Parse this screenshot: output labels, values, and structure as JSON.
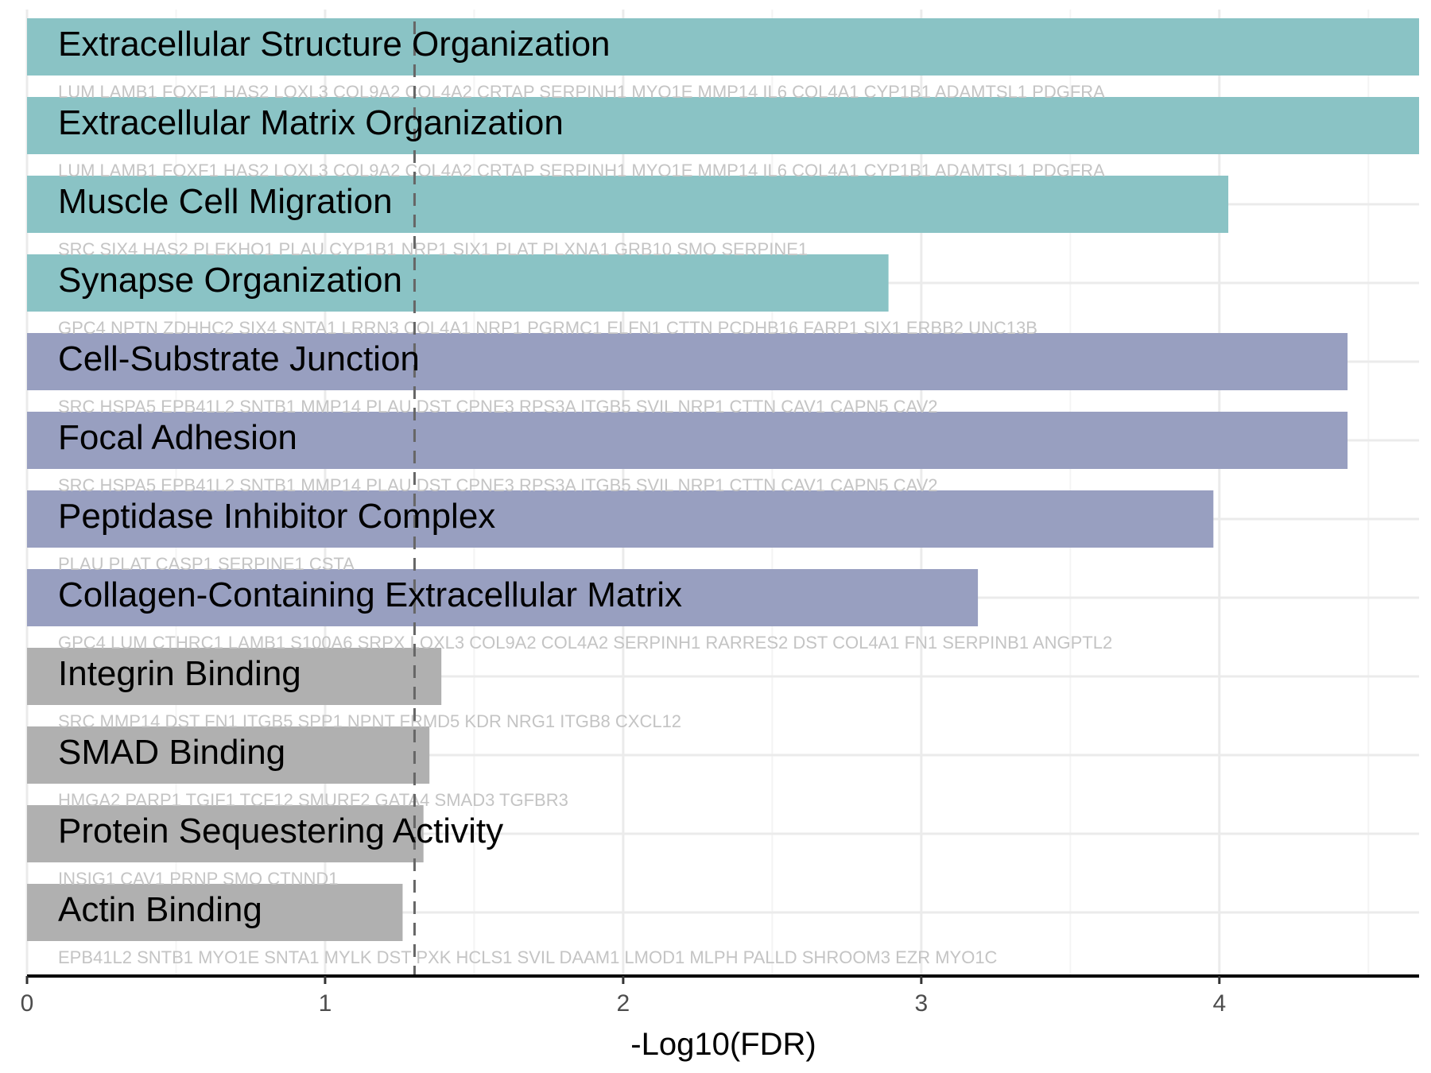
{
  "chart_data": {
    "type": "bar",
    "orientation": "horizontal",
    "xlabel": "-Log10(FDR)",
    "xlim": [
      0,
      4.67
    ],
    "xticks": [
      0,
      1,
      2,
      3,
      4
    ],
    "threshold": 1.3,
    "grid": true,
    "colors": {
      "teal": "#8ac3c5",
      "lavender": "#989fc0",
      "gray": "#b0b0b0",
      "threshold_line": "#666666"
    },
    "bars": [
      {
        "term": "Extracellular Structure Organization",
        "value": 4.67,
        "color": "teal",
        "genes": "LUM LAMB1 FOXF1 HAS2 LOXL3 COL9A2 COL4A2 CRTAP SERPINH1 MYO1E MMP14 IL6 COL4A1 CYP1B1 ADAMTSL1 PDGFRA"
      },
      {
        "term": "Extracellular Matrix Organization",
        "value": 4.67,
        "color": "teal",
        "genes": "LUM LAMB1 FOXF1 HAS2 LOXL3 COL9A2 COL4A2 CRTAP SERPINH1 MYO1E MMP14 IL6 COL4A1 CYP1B1 ADAMTSL1 PDGFRA"
      },
      {
        "term": "Muscle Cell Migration",
        "value": 4.03,
        "color": "teal",
        "genes": "SRC SIX4 HAS2 PLEKHO1 PLAU CYP1B1 NRP1 SIX1 PLAT PLXNA1 GRB10 SMO SERPINE1"
      },
      {
        "term": "Synapse Organization",
        "value": 2.89,
        "color": "teal",
        "genes": "GPC4 NPTN ZDHHC2 SIX4 SNTA1 LRRN3 COL4A1 NRP1 PGRMC1 ELFN1 CTTN PCDHB16 FARP1 SIX1 ERBB2 UNC13B"
      },
      {
        "term": "Cell-Substrate Junction",
        "value": 4.43,
        "color": "lavender",
        "genes": "SRC HSPA5 EPB41L2 SNTB1 MMP14 PLAU DST CPNE3 RPS3A ITGB5 SVIL NRP1 CTTN CAV1 CAPN5 CAV2"
      },
      {
        "term": "Focal Adhesion",
        "value": 4.43,
        "color": "lavender",
        "genes": "SRC HSPA5 EPB41L2 SNTB1 MMP14 PLAU DST CPNE3 RPS3A ITGB5 SVIL NRP1 CTTN CAV1 CAPN5 CAV2"
      },
      {
        "term": "Peptidase Inhibitor Complex",
        "value": 3.98,
        "color": "lavender",
        "genes": "PLAU PLAT CASP1 SERPINE1 CSTA"
      },
      {
        "term": "Collagen-Containing Extracellular Matrix",
        "value": 3.19,
        "color": "lavender",
        "genes": "GPC4 LUM CTHRC1 LAMB1 S100A6 SRPX LOXL3 COL9A2 COL4A2 SERPINH1 RARRES2 DST COL4A1 FN1 SERPINB1 ANGPTL2"
      },
      {
        "term": "Integrin Binding",
        "value": 1.39,
        "color": "gray",
        "genes": "SRC MMP14 DST FN1 ITGB5 SPP1 NPNT FRMD5 KDR NRG1 ITGB8 CXCL12"
      },
      {
        "term": "SMAD Binding",
        "value": 1.35,
        "color": "gray",
        "genes": "HMGA2 PARP1 TGIF1 TCF12 SMURF2 GATA4 SMAD3 TGFBR3"
      },
      {
        "term": "Protein Sequestering Activity",
        "value": 1.33,
        "color": "gray",
        "genes": "INSIG1 CAV1 PRNP SMO CTNND1"
      },
      {
        "term": "Actin Binding",
        "value": 1.26,
        "color": "gray",
        "genes": "EPB41L2 SNTB1 MYO1E SNTA1 MYLK DST PXK HCLS1 SVIL DAAM1 LMOD1 MLPH PALLD SHROOM3 EZR MYO1C"
      }
    ]
  }
}
